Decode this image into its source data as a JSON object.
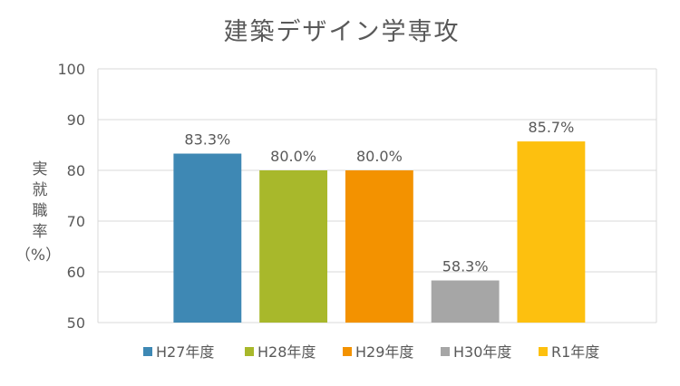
{
  "chart_data": {
    "type": "bar",
    "title": "建築デザイン学専攻",
    "ylabel": [
      "実",
      "就",
      "職",
      "率",
      "（%）"
    ],
    "xlabel": "",
    "ylim": [
      50,
      100
    ],
    "yticks": [
      50,
      60,
      70,
      80,
      90,
      100
    ],
    "grid": true,
    "legend_position": "bottom",
    "categories": [
      "H27年度",
      "H28年度",
      "H29年度",
      "H30年度",
      "R1年度"
    ],
    "values": [
      83.3,
      80.0,
      80.0,
      58.3,
      85.7
    ],
    "data_labels": [
      "83.3%",
      "80.0%",
      "80.0%",
      "58.3%",
      "85.7%"
    ],
    "colors": [
      "#3e88b4",
      "#a8b82b",
      "#f39200",
      "#a6a6a6",
      "#fdc00f"
    ]
  }
}
